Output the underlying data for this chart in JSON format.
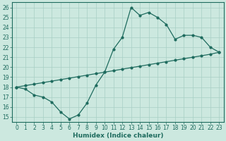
{
  "title": "",
  "xlabel": "Humidex (Indice chaleur)",
  "bg_color": "#cce8df",
  "line_color": "#1e6b5e",
  "grid_color": "#a8cfc4",
  "xlim": [
    -0.5,
    23.5
  ],
  "ylim": [
    14.5,
    26.5
  ],
  "xticks": [
    0,
    1,
    2,
    3,
    4,
    5,
    6,
    7,
    8,
    9,
    10,
    11,
    12,
    13,
    14,
    15,
    16,
    17,
    18,
    19,
    20,
    21,
    22,
    23
  ],
  "yticks": [
    15,
    16,
    17,
    18,
    19,
    20,
    21,
    22,
    23,
    24,
    25,
    26
  ],
  "curve1_x": [
    0,
    1,
    2,
    3,
    4,
    5,
    6,
    7,
    8,
    9,
    10,
    11,
    12,
    13,
    14,
    15,
    16,
    17,
    18,
    19,
    20,
    21,
    22,
    23
  ],
  "curve1_y": [
    18.0,
    17.8,
    17.2,
    17.0,
    16.5,
    15.5,
    14.8,
    15.2,
    16.4,
    18.2,
    19.5,
    21.8,
    23.0,
    26.0,
    25.2,
    25.5,
    25.0,
    24.3,
    22.8,
    23.2,
    23.2,
    23.0,
    22.0,
    21.5
  ],
  "curve2_x": [
    0,
    1,
    2,
    3,
    4,
    5,
    6,
    7,
    8,
    9,
    10,
    11,
    12,
    13,
    14,
    15,
    16,
    17,
    18,
    19,
    20,
    21,
    22,
    23
  ],
  "curve2_y": [
    18.0,
    18.15,
    18.3,
    18.45,
    18.6,
    18.75,
    18.9,
    19.05,
    19.2,
    19.35,
    19.5,
    19.65,
    19.8,
    19.95,
    20.1,
    20.25,
    20.4,
    20.55,
    20.7,
    20.85,
    21.0,
    21.15,
    21.3,
    21.5
  ],
  "xlabel_fontsize": 6.5,
  "tick_fontsize": 5.5
}
